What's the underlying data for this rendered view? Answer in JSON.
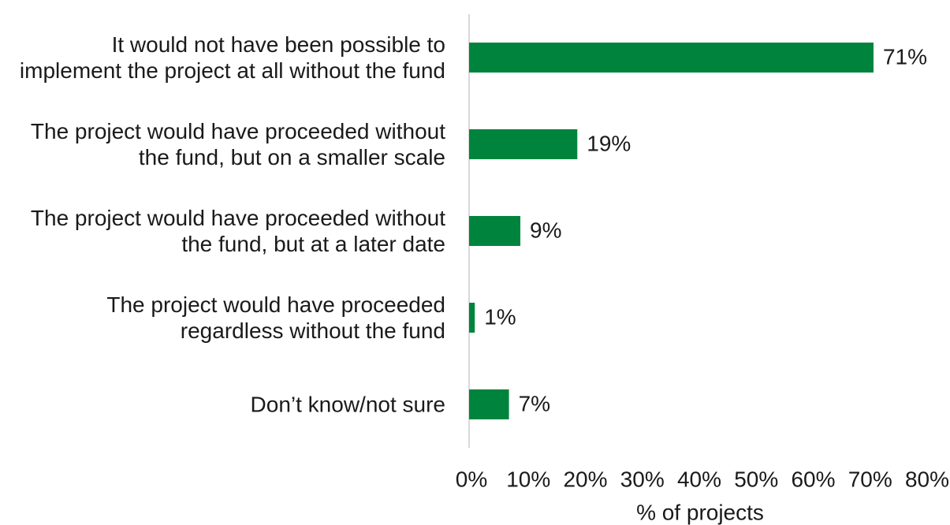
{
  "chart_data": {
    "type": "bar",
    "orientation": "horizontal",
    "categories": [
      "It would not have been possible to implement the project at all without the fund",
      "The project would have proceeded without the fund, but on a smaller scale",
      "The project would have proceeded without the fund, but at a later date",
      "The project would have proceeded regardless without the fund",
      "Don’t know/not sure"
    ],
    "values": [
      71,
      19,
      9,
      1,
      7
    ],
    "value_labels": [
      "71%",
      "19%",
      "9%",
      "1%",
      "7%"
    ],
    "color": "#00843d",
    "xlabel": "% of projects",
    "xlim": [
      0,
      80
    ],
    "xticks": [
      {
        "value": 0,
        "label": "0%"
      },
      {
        "value": 10,
        "label": "10%"
      },
      {
        "value": 20,
        "label": "20%"
      },
      {
        "value": 30,
        "label": "30%"
      },
      {
        "value": 40,
        "label": "40%"
      },
      {
        "value": 50,
        "label": "50%"
      },
      {
        "value": 60,
        "label": "60%"
      },
      {
        "value": 70,
        "label": "70%"
      },
      {
        "value": 80,
        "label": "80%"
      }
    ],
    "grid": false
  }
}
